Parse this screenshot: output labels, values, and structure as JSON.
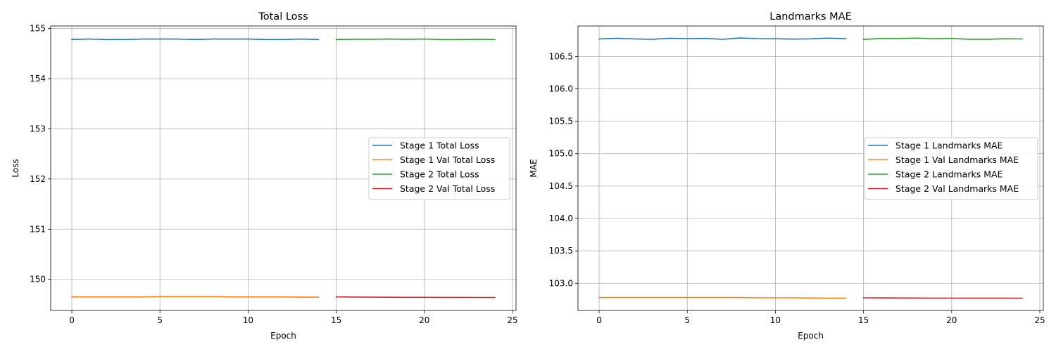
{
  "chart_data": [
    {
      "type": "line",
      "title": "Total Loss",
      "xlabel": "Epoch",
      "ylabel": "Loss",
      "xlim": [
        -1.2,
        25.2
      ],
      "ylim": [
        149.38,
        155.05
      ],
      "xticks": [
        0,
        5,
        10,
        15,
        20,
        25
      ],
      "yticks": [
        150,
        151,
        152,
        153,
        154,
        155
      ],
      "grid": true,
      "legend": "center-right",
      "series": [
        {
          "name": "Stage 1 Total Loss",
          "color": "#1f77b4",
          "x": [
            0,
            1,
            2,
            3,
            4,
            5,
            6,
            7,
            8,
            9,
            10,
            11,
            12,
            13,
            14
          ],
          "y": [
            154.78,
            154.79,
            154.78,
            154.78,
            154.79,
            154.79,
            154.79,
            154.78,
            154.79,
            154.79,
            154.79,
            154.78,
            154.78,
            154.79,
            154.78
          ]
        },
        {
          "name": "Stage 1 Val Total Loss",
          "color": "#ff7f0e",
          "x": [
            0,
            1,
            2,
            3,
            4,
            5,
            6,
            7,
            8,
            9,
            10,
            11,
            12,
            13,
            14
          ],
          "y": [
            149.65,
            149.65,
            149.65,
            149.65,
            149.65,
            149.655,
            149.655,
            149.655,
            149.655,
            149.65,
            149.65,
            149.65,
            149.65,
            149.645,
            149.645
          ]
        },
        {
          "name": "Stage 2 Total Loss",
          "color": "#2ca02c",
          "x": [
            15,
            16,
            17,
            18,
            19,
            20,
            21,
            22,
            23,
            24
          ],
          "y": [
            154.78,
            154.785,
            154.785,
            154.79,
            154.785,
            154.79,
            154.78,
            154.78,
            154.785,
            154.78
          ]
        },
        {
          "name": "Stage 2 Val Total Loss",
          "color": "#d62728",
          "x": [
            15,
            16,
            17,
            18,
            19,
            20,
            21,
            22,
            23,
            24
          ],
          "y": [
            149.65,
            149.647,
            149.645,
            149.643,
            149.642,
            149.641,
            149.64,
            149.64,
            149.639,
            149.638
          ]
        }
      ]
    },
    {
      "type": "line",
      "title": "Landmarks MAE",
      "xlabel": "Epoch",
      "ylabel": "MAE",
      "xlim": [
        -1.2,
        25.2
      ],
      "ylim": [
        102.58,
        106.97
      ],
      "xticks": [
        0,
        5,
        10,
        15,
        20,
        25
      ],
      "yticks": [
        "103.0",
        "103.5",
        "104.0",
        "104.5",
        "105.0",
        "105.5",
        "106.0",
        "106.5"
      ],
      "grid": true,
      "legend": "center-right",
      "series": [
        {
          "name": "Stage 1 Landmarks MAE",
          "color": "#1f77b4",
          "x": [
            0,
            1,
            2,
            3,
            4,
            5,
            6,
            7,
            8,
            9,
            10,
            11,
            12,
            13,
            14
          ],
          "y": [
            106.77,
            106.78,
            106.77,
            106.765,
            106.78,
            106.775,
            106.778,
            106.765,
            106.785,
            106.775,
            106.773,
            106.768,
            106.772,
            106.782,
            106.773
          ]
        },
        {
          "name": "Stage 1 Val Landmarks MAE",
          "color": "#ff7f0e",
          "x": [
            0,
            1,
            2,
            3,
            4,
            5,
            6,
            7,
            8,
            9,
            10,
            11,
            12,
            13,
            14
          ],
          "y": [
            102.78,
            102.78,
            102.78,
            102.78,
            102.78,
            102.78,
            102.78,
            102.78,
            102.78,
            102.775,
            102.775,
            102.775,
            102.772,
            102.77,
            102.77
          ]
        },
        {
          "name": "Stage 2 Landmarks MAE",
          "color": "#2ca02c",
          "x": [
            15,
            16,
            17,
            18,
            19,
            20,
            21,
            22,
            23,
            24
          ],
          "y": [
            106.763,
            106.777,
            106.777,
            106.783,
            106.773,
            106.778,
            106.765,
            106.765,
            106.773,
            106.77
          ]
        },
        {
          "name": "Stage 2 Val Landmarks MAE",
          "color": "#d62728",
          "x": [
            15,
            16,
            17,
            18,
            19,
            20,
            21,
            22,
            23,
            24
          ],
          "y": [
            102.775,
            102.774,
            102.773,
            102.772,
            102.771,
            102.771,
            102.77,
            102.77,
            102.77,
            102.769
          ]
        }
      ]
    }
  ]
}
